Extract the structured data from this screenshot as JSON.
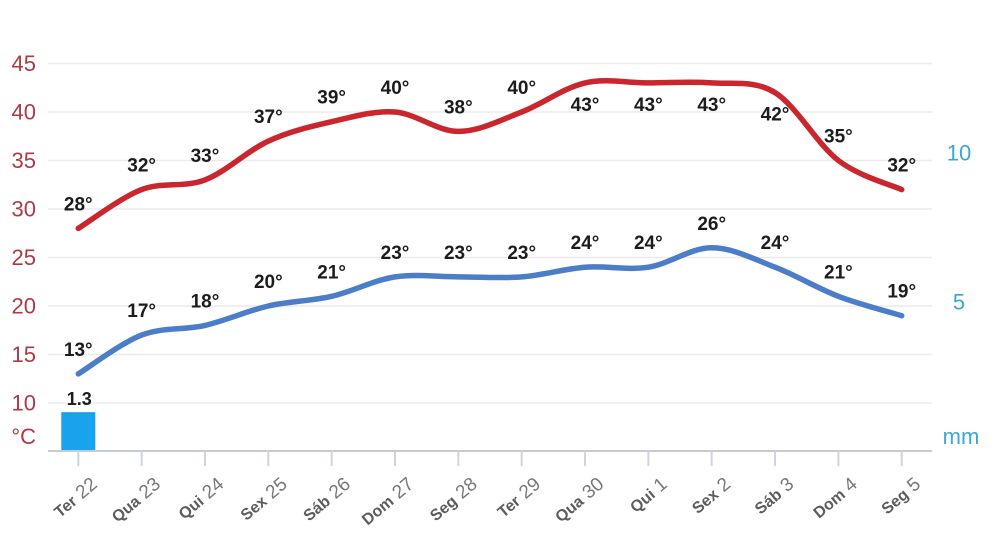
{
  "chart_data": {
    "type": "line",
    "subtype": "14-day-weather-forecast",
    "title": "",
    "legend_position": "none",
    "grid": true,
    "categories": [
      {
        "day": "Ter",
        "date": "22"
      },
      {
        "day": "Qua",
        "date": "23"
      },
      {
        "day": "Qui",
        "date": "24"
      },
      {
        "day": "Sex",
        "date": "25"
      },
      {
        "day": "Sáb",
        "date": "26"
      },
      {
        "day": "Dom",
        "date": "27"
      },
      {
        "day": "Seg",
        "date": "28"
      },
      {
        "day": "Ter",
        "date": "29"
      },
      {
        "day": "Qua",
        "date": "30"
      },
      {
        "day": "Qui",
        "date": "1"
      },
      {
        "day": "Sex",
        "date": "2"
      },
      {
        "day": "Sáb",
        "date": "3"
      },
      {
        "day": "Dom",
        "date": "4"
      },
      {
        "day": "Seg",
        "date": "5"
      }
    ],
    "series": [
      {
        "name": "max_temperature",
        "type": "line",
        "unit": "°",
        "color": "#c9262e",
        "values": [
          28,
          32,
          33,
          37,
          39,
          40,
          38,
          40,
          43,
          43,
          43,
          42,
          35,
          32
        ]
      },
      {
        "name": "min_temperature",
        "type": "line",
        "unit": "°",
        "color": "#4b7dc8",
        "values": [
          13,
          17,
          18,
          20,
          21,
          23,
          23,
          23,
          24,
          24,
          26,
          24,
          21,
          19
        ]
      },
      {
        "name": "precipitation",
        "type": "bar",
        "unit": "mm",
        "color": "#18a3ec",
        "values": [
          1.3,
          0,
          0,
          0,
          0,
          0,
          0,
          0,
          0,
          0,
          0,
          0,
          0,
          0
        ]
      }
    ],
    "left_axis": {
      "unit": "°C",
      "ticks": [
        45,
        40,
        35,
        30,
        25,
        20,
        15,
        10
      ],
      "range": [
        5,
        50
      ],
      "color": "#ae3a44"
    },
    "right_axis": {
      "unit": "mm",
      "ticks": [
        10,
        5
      ],
      "range": [
        0,
        15
      ],
      "color": "#3aa6d9"
    }
  }
}
